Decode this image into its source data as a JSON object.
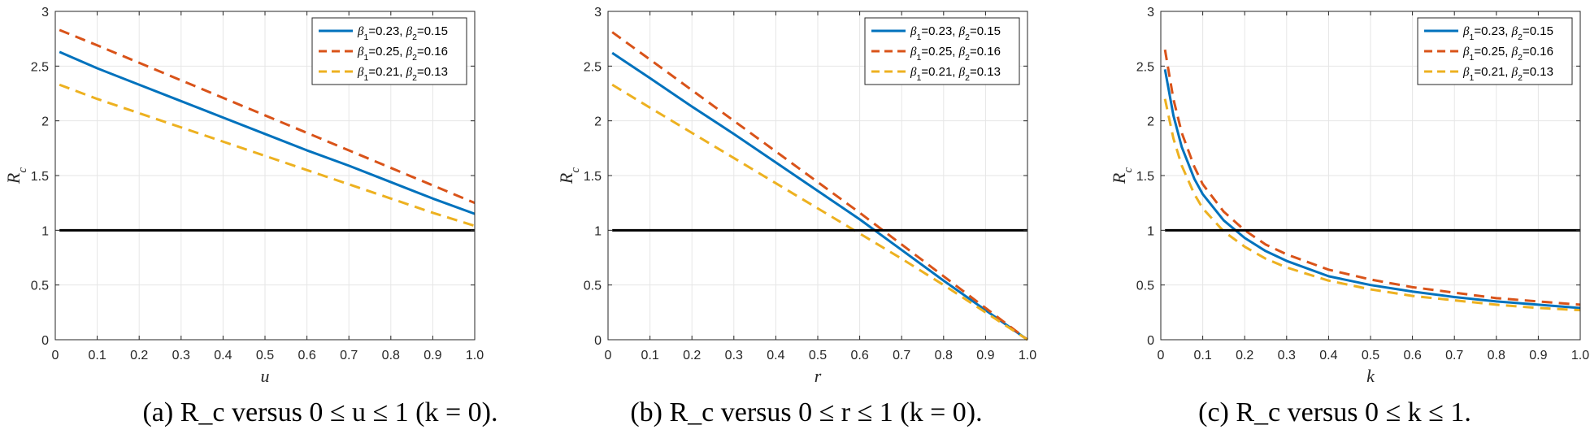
{
  "chart_data": [
    {
      "type": "line",
      "xlabel": "u",
      "ylabel": "R_c",
      "xlim": [
        0,
        1
      ],
      "ylim": [
        0,
        3
      ],
      "xticks": [
        "0",
        "0.1",
        "0.2",
        "0.3",
        "0.4",
        "0.5",
        "0.6",
        "0.7",
        "0.8",
        "0.9",
        "1.0"
      ],
      "yticks": [
        "0",
        "0.5",
        "1",
        "1.5",
        "2",
        "2.5",
        "3"
      ],
      "grid": true,
      "legend_position": "top-right",
      "caption": "(a)  R_c versus 0 ≤ u ≤ 1 (k = 0).",
      "series": [
        {
          "name": "β1=0.23, β2=0.15",
          "color": "#0072BD",
          "style": "solid",
          "x": [
            0.01,
            0.1,
            0.2,
            0.3,
            0.4,
            0.5,
            0.6,
            0.7,
            0.8,
            0.9,
            1.0
          ],
          "y": [
            2.63,
            2.48,
            2.33,
            2.18,
            2.03,
            1.88,
            1.73,
            1.59,
            1.44,
            1.29,
            1.15
          ]
        },
        {
          "name": "β1=0.25, β2=0.16",
          "color": "#D95319",
          "style": "dashed",
          "x": [
            0.01,
            0.1,
            0.2,
            0.3,
            0.4,
            0.5,
            0.6,
            0.7,
            0.8,
            0.9,
            1.0
          ],
          "y": [
            2.83,
            2.69,
            2.53,
            2.37,
            2.21,
            2.05,
            1.89,
            1.73,
            1.57,
            1.41,
            1.25
          ]
        },
        {
          "name": "β1=0.21, β2=0.13",
          "color": "#EDB120",
          "style": "dashed",
          "x": [
            0.01,
            0.1,
            0.2,
            0.3,
            0.4,
            0.5,
            0.6,
            0.7,
            0.8,
            0.9,
            1.0
          ],
          "y": [
            2.33,
            2.2,
            2.07,
            1.94,
            1.81,
            1.68,
            1.55,
            1.42,
            1.29,
            1.16,
            1.04
          ]
        },
        {
          "name": "",
          "color": "#000000",
          "style": "solid",
          "legend": false,
          "x": [
            0.01,
            1.0
          ],
          "y": [
            1,
            1
          ]
        }
      ]
    },
    {
      "type": "line",
      "xlabel": "r",
      "ylabel": "R_c",
      "xlim": [
        0,
        1
      ],
      "ylim": [
        0,
        3
      ],
      "xticks": [
        "0",
        "0.1",
        "0.2",
        "0.3",
        "0.4",
        "0.5",
        "0.6",
        "0.7",
        "0.8",
        "0.9",
        "1.0"
      ],
      "yticks": [
        "0",
        "0.5",
        "1",
        "1.5",
        "2",
        "2.5",
        "3"
      ],
      "grid": true,
      "legend_position": "top-right",
      "caption": "(b)  R_c versus 0 ≤ r ≤ 1 (k = 0).",
      "series": [
        {
          "name": "β1=0.23, β2=0.15",
          "color": "#0072BD",
          "style": "solid",
          "x": [
            0.01,
            0.1,
            0.2,
            0.3,
            0.4,
            0.5,
            0.6,
            0.7,
            0.8,
            0.9,
            1.0
          ],
          "y": [
            2.62,
            2.39,
            2.13,
            1.88,
            1.62,
            1.36,
            1.1,
            0.82,
            0.54,
            0.27,
            0.0
          ]
        },
        {
          "name": "β1=0.25, β2=0.16",
          "color": "#D95319",
          "style": "dashed",
          "x": [
            0.01,
            0.1,
            0.2,
            0.3,
            0.4,
            0.5,
            0.6,
            0.7,
            0.8,
            0.9,
            1.0
          ],
          "y": [
            2.81,
            2.56,
            2.28,
            2.0,
            1.72,
            1.44,
            1.16,
            0.87,
            0.58,
            0.29,
            0.0
          ]
        },
        {
          "name": "β1=0.21, β2=0.13",
          "color": "#EDB120",
          "style": "dashed",
          "x": [
            0.01,
            0.1,
            0.2,
            0.3,
            0.4,
            0.5,
            0.6,
            0.7,
            0.8,
            0.9,
            1.0
          ],
          "y": [
            2.33,
            2.12,
            1.89,
            1.66,
            1.43,
            1.2,
            0.97,
            0.74,
            0.5,
            0.25,
            0.0
          ]
        },
        {
          "name": "",
          "color": "#000000",
          "style": "solid",
          "legend": false,
          "x": [
            0.01,
            1.0
          ],
          "y": [
            1,
            1
          ]
        }
      ]
    },
    {
      "type": "line",
      "xlabel": "k",
      "ylabel": "R_c",
      "xlim": [
        0,
        1
      ],
      "ylim": [
        0,
        3
      ],
      "xticks": [
        "0",
        "0.1",
        "0.2",
        "0.3",
        "0.4",
        "0.5",
        "0.6",
        "0.7",
        "0.8",
        "0.9",
        "1.0"
      ],
      "yticks": [
        "0",
        "0.5",
        "1",
        "1.5",
        "2",
        "2.5",
        "3"
      ],
      "grid": true,
      "legend_position": "top-right",
      "caption": "(c)  R_c versus 0 ≤ k ≤ 1.",
      "series": [
        {
          "name": "β1=0.23, β2=0.15",
          "color": "#0072BD",
          "style": "solid",
          "x": [
            0.01,
            0.03,
            0.05,
            0.08,
            0.1,
            0.15,
            0.2,
            0.25,
            0.3,
            0.4,
            0.5,
            0.6,
            0.7,
            0.8,
            0.9,
            1.0
          ],
          "y": [
            2.47,
            2.05,
            1.76,
            1.47,
            1.33,
            1.09,
            0.93,
            0.81,
            0.72,
            0.58,
            0.5,
            0.44,
            0.39,
            0.35,
            0.32,
            0.29
          ]
        },
        {
          "name": "β1=0.25, β2=0.16",
          "color": "#D95319",
          "style": "dashed",
          "x": [
            0.01,
            0.03,
            0.05,
            0.08,
            0.1,
            0.15,
            0.2,
            0.25,
            0.3,
            0.4,
            0.5,
            0.6,
            0.7,
            0.8,
            0.9,
            1.0
          ],
          "y": [
            2.65,
            2.2,
            1.89,
            1.58,
            1.42,
            1.17,
            1.0,
            0.87,
            0.78,
            0.64,
            0.55,
            0.48,
            0.43,
            0.38,
            0.35,
            0.32
          ]
        },
        {
          "name": "β1=0.21, β2=0.13",
          "color": "#EDB120",
          "style": "dashed",
          "x": [
            0.01,
            0.03,
            0.05,
            0.08,
            0.1,
            0.15,
            0.2,
            0.25,
            0.3,
            0.4,
            0.5,
            0.6,
            0.7,
            0.8,
            0.9,
            1.0
          ],
          "y": [
            2.2,
            1.84,
            1.59,
            1.33,
            1.2,
            0.99,
            0.85,
            0.74,
            0.66,
            0.54,
            0.46,
            0.4,
            0.36,
            0.32,
            0.29,
            0.27
          ]
        },
        {
          "name": "",
          "color": "#000000",
          "style": "solid",
          "legend": false,
          "x": [
            0.01,
            1.0
          ],
          "y": [
            1,
            1
          ]
        }
      ]
    }
  ]
}
